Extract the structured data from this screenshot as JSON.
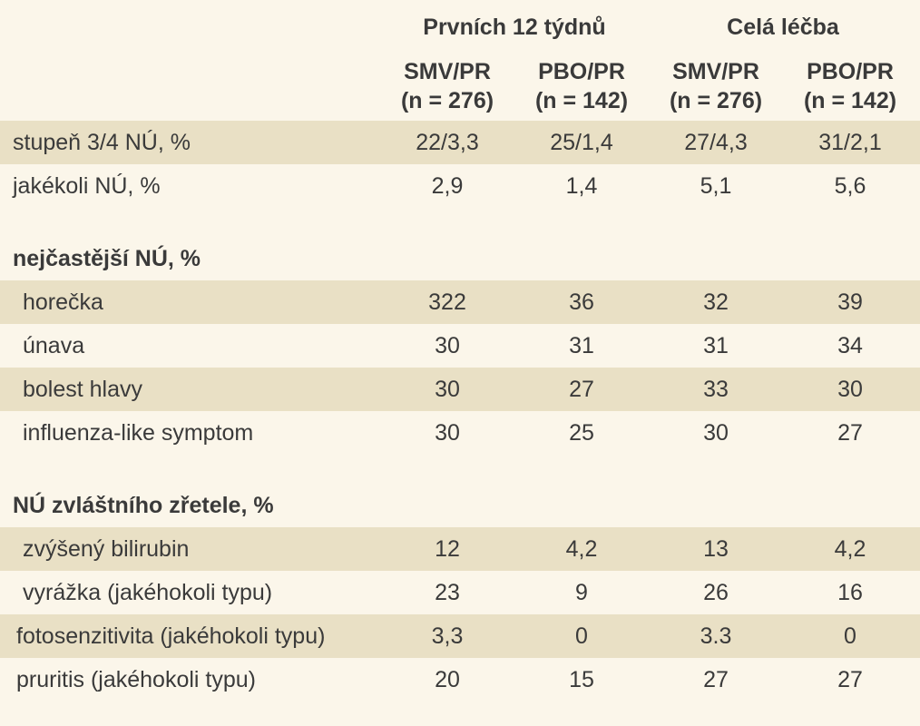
{
  "colors": {
    "background": "#fbf6ea",
    "row_highlight": "#e9e0c5",
    "text": "#3a3a3a"
  },
  "table": {
    "column_groups": [
      "Prvních 12 týdnů",
      "Celá léčba"
    ],
    "columns": [
      {
        "arm": "SMV/PR",
        "n": "(n = 276)"
      },
      {
        "arm": "PBO/PR",
        "n": "(n = 142)"
      },
      {
        "arm": "SMV/PR",
        "n": "(n = 276)"
      },
      {
        "arm": "PBO/PR",
        "n": "(n = 142)"
      }
    ],
    "rows": [
      {
        "label": "stupeň 3/4 NÚ, %",
        "values": [
          "22/3,3",
          "25/1,4",
          "27/4,3",
          "31/2,1"
        ]
      },
      {
        "label": "jakékoli NÚ, %",
        "values": [
          "2,9",
          "1,4",
          "5,1",
          "5,6"
        ]
      }
    ],
    "sections": [
      {
        "title": "nejčastější NÚ, %",
        "rows": [
          {
            "label": "horečka",
            "values": [
              "322",
              "36",
              "32",
              "39"
            ]
          },
          {
            "label": "únava",
            "values": [
              "30",
              "31",
              "31",
              "34"
            ]
          },
          {
            "label": "bolest hlavy",
            "values": [
              "30",
              "27",
              "33",
              "30"
            ]
          },
          {
            "label": "influenza-like symptom",
            "values": [
              "30",
              "25",
              "30",
              "27"
            ]
          }
        ]
      },
      {
        "title": "NÚ zvláštního zřetele, %",
        "rows": [
          {
            "label": "zvýšený bilirubin",
            "values": [
              "12",
              "4,2",
              "13",
              "4,2"
            ]
          },
          {
            "label": "vyrážka (jakéhokoli typu)",
            "values": [
              "23",
              "9",
              "26",
              "16"
            ]
          },
          {
            "label": "fotosenzitivita (jakéhokoli typu)",
            "values": [
              "3,3",
              "0",
              "3.3",
              "0"
            ]
          },
          {
            "label": "pruritis (jakéhokoli typu)",
            "values": [
              "20",
              "15",
              "27",
              "27"
            ]
          }
        ]
      }
    ]
  }
}
